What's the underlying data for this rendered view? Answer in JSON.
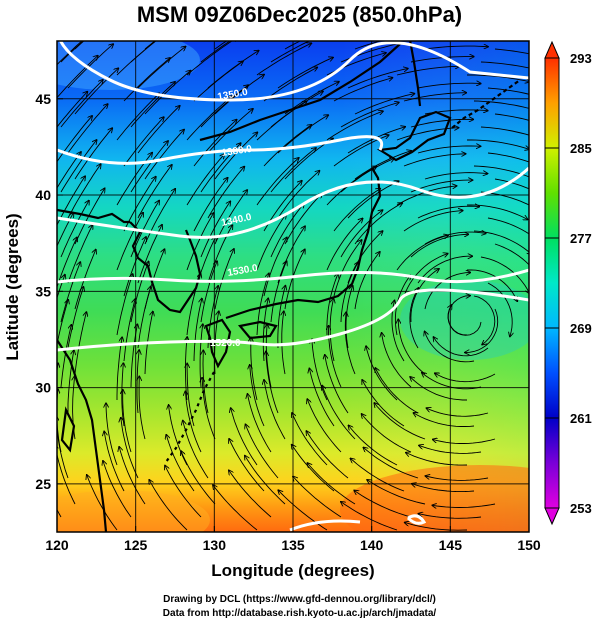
{
  "title": "MSM 09Z06Dec2025 (850.0hPa)",
  "map": {
    "lon_range": [
      120,
      150
    ],
    "lat_range": [
      22.5,
      48
    ],
    "x_ticks": [
      120,
      125,
      130,
      135,
      140,
      145,
      150
    ],
    "y_ticks": [
      25,
      30,
      35,
      40,
      45
    ],
    "x_label": "Longitude (degrees)",
    "y_label": "Latitude  (degrees)",
    "grid": true,
    "contours": [
      {
        "label": "1350.0"
      },
      {
        "label": "1380.0"
      },
      {
        "label": "1340.0"
      },
      {
        "label": "1530.0"
      },
      {
        "label": "1520.0"
      }
    ]
  },
  "colorbar": {
    "min": 253,
    "max": 293,
    "ticks": [
      253,
      261,
      269,
      277,
      285,
      293
    ],
    "colors": [
      "#e000e0",
      "#7a00d8",
      "#0000c8",
      "#0050ff",
      "#00b8ff",
      "#00e8c8",
      "#00e060",
      "#60e000",
      "#d0f000",
      "#ffd000",
      "#ff8000",
      "#ff3000"
    ]
  },
  "credits": {
    "line1": "Drawing by DCL (https://www.gfd-dennou.org/library/dcl/)",
    "line2": "Data from http://database.rish.kyoto-u.ac.jp/arch/jmadata/"
  }
}
